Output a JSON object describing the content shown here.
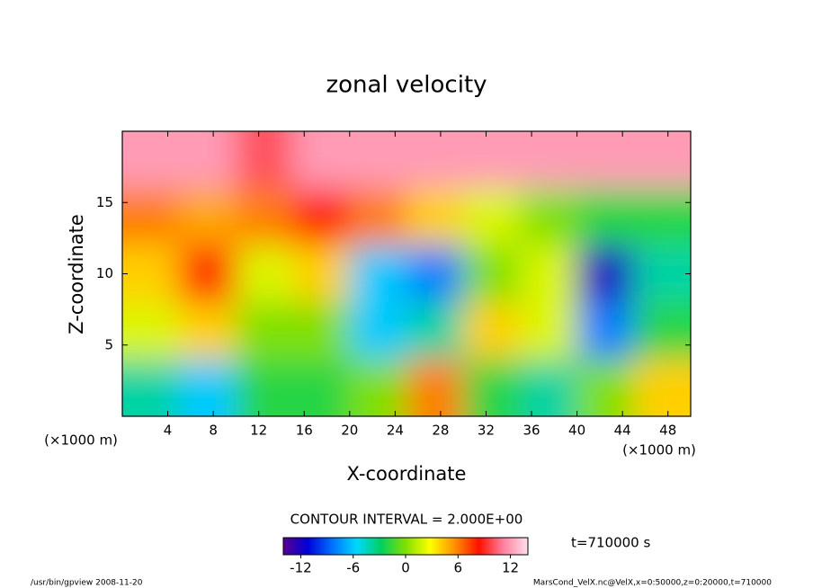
{
  "chart_data": {
    "type": "contour",
    "title": "zonal velocity",
    "xlabel": "X-coordinate",
    "ylabel": "Z-coordinate",
    "x_unit_left": "(×1000 m)",
    "x_unit_right": "(×1000 m)",
    "contour_interval": "CONTOUR INTERVAL = 2.000E+00",
    "time_label": "t=710000 s",
    "footer_left": "/usr/bin/gpview  2008-11-20",
    "footer_right": "MarsCond_VelX.nc@VelX,x=0:50000,z=0:20000,t=710000",
    "xlim": [
      0,
      50
    ],
    "ylim": [
      0,
      20
    ],
    "xticks": [
      4,
      8,
      12,
      16,
      20,
      24,
      28,
      32,
      36,
      40,
      44,
      48
    ],
    "yticks": [
      5,
      10,
      15
    ],
    "z": [
      [
        12,
        12,
        10,
        12,
        12,
        12,
        12,
        12,
        12,
        12
      ],
      [
        6,
        5,
        6,
        8,
        6,
        4,
        2,
        0,
        -2,
        -2
      ],
      [
        4,
        8,
        2,
        4,
        -6,
        -8,
        0,
        2,
        -12,
        -4
      ],
      [
        2,
        4,
        0,
        0,
        -6,
        -4,
        4,
        2,
        -8,
        -2
      ],
      [
        -4,
        -6,
        -2,
        -2,
        0,
        6,
        -2,
        -4,
        0,
        4
      ]
    ],
    "colorbar_lim": [
      -14,
      14
    ],
    "colorbar_ticks": [
      -12,
      -6,
      0,
      6,
      12
    ],
    "colormap": [
      "#5a0090",
      "#0000d8",
      "#0070ff",
      "#00d8ff",
      "#00d060",
      "#80e000",
      "#ffff00",
      "#ff9000",
      "#ff1000",
      "#ff80a0",
      "#ffe0ea"
    ]
  }
}
